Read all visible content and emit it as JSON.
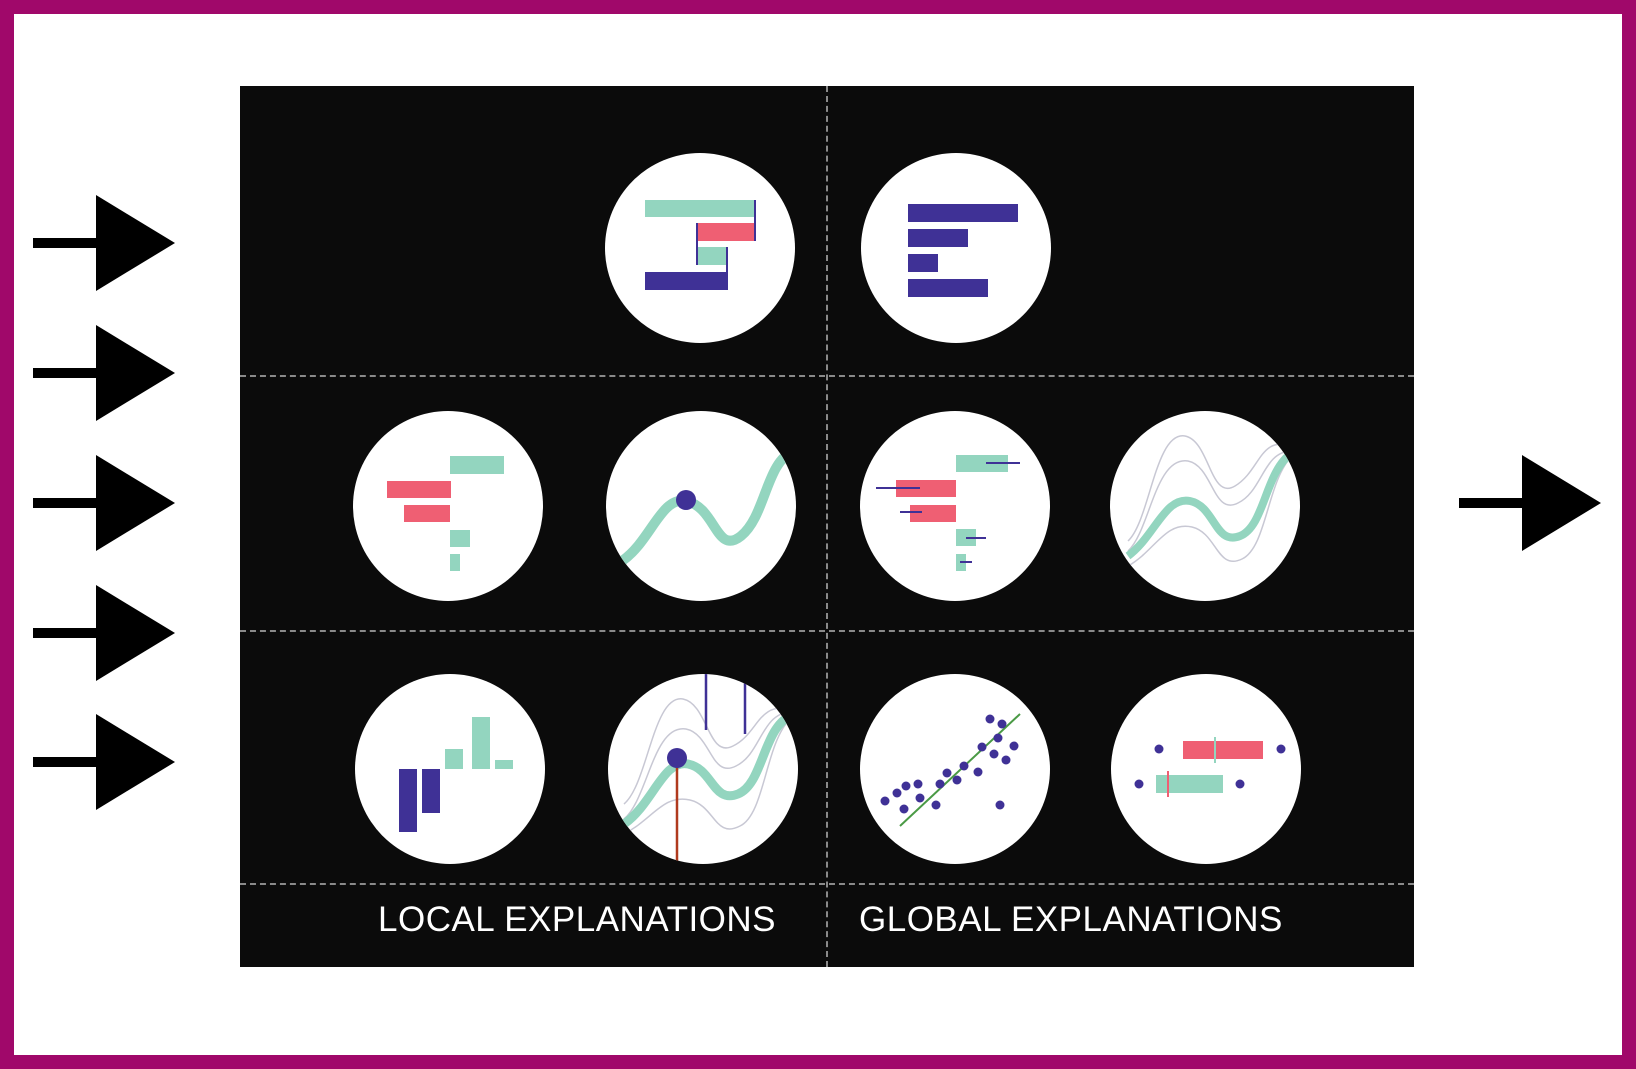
{
  "labels": {
    "local": "LOCAL EXPLANATIONS",
    "global": "GLOBAL EXPLANATIONS"
  },
  "colors": {
    "frame": "#a0086a",
    "panel": "#0b0b0b",
    "teal": "#93d5bf",
    "coral": "#ef5f73",
    "indigo": "#3f3196",
    "arrow": "#000000",
    "dash": "#8a8a8a"
  },
  "icons": [
    "arrow-right-icon",
    "waterfall-chart-icon",
    "feature-importance-icon",
    "local-attribution-icon",
    "partial-dependence-point-icon",
    "global-attribution-icon",
    "ice-curves-icon",
    "contribution-bars-icon",
    "ice-point-icon",
    "scatter-fit-icon",
    "boxplot-icon"
  ]
}
